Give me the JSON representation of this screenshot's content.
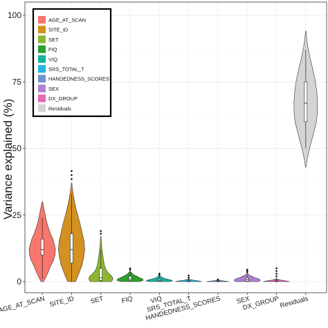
{
  "chart_data": {
    "type": "violin",
    "ylabel": "Variance explained (%)",
    "ylim": [
      0,
      100
    ],
    "yticks": [
      0,
      25,
      50,
      75,
      100
    ],
    "grid": true,
    "legend_position": "top-left",
    "categories": [
      "AGE_AT_SCAN",
      "SITE_ID",
      "SET",
      "FIQ",
      "VIQ",
      "SRS_TOTAL_T",
      "HANDEDNESS_SCORES",
      "SEX",
      "DX_GROUP",
      "Residuals"
    ],
    "series": [
      {
        "name": "AGE_AT_SCAN",
        "color": "#f8766d",
        "min": 0,
        "q1": 10,
        "median": 12,
        "q3": 16,
        "max": 30,
        "whisker_low": 1,
        "whisker_high": 24,
        "density": [
          [
            0,
            0.1
          ],
          [
            2,
            0.3
          ],
          [
            4,
            0.48
          ],
          [
            6,
            0.65
          ],
          [
            8,
            0.85
          ],
          [
            10,
            0.97
          ],
          [
            12,
            1.0
          ],
          [
            14,
            0.92
          ],
          [
            16,
            0.8
          ],
          [
            18,
            0.62
          ],
          [
            20,
            0.48
          ],
          [
            22,
            0.36
          ],
          [
            24,
            0.26
          ],
          [
            26,
            0.18
          ],
          [
            28,
            0.1
          ],
          [
            30,
            0.02
          ]
        ],
        "width_scale": 1.0,
        "outliers": []
      },
      {
        "name": "SITE_ID",
        "color": "#d3921f",
        "min": 0,
        "q1": 7,
        "median": 12,
        "q3": 18,
        "max": 37,
        "whisker_low": 0,
        "whisker_high": 33,
        "density": [
          [
            0,
            0.3
          ],
          [
            3,
            0.55
          ],
          [
            6,
            0.78
          ],
          [
            9,
            0.92
          ],
          [
            12,
            1.0
          ],
          [
            15,
            0.95
          ],
          [
            18,
            0.82
          ],
          [
            21,
            0.68
          ],
          [
            24,
            0.52
          ],
          [
            27,
            0.36
          ],
          [
            30,
            0.22
          ],
          [
            33,
            0.12
          ],
          [
            35,
            0.06
          ],
          [
            37,
            0.02
          ]
        ],
        "width_scale": 1.0,
        "outliers": [
          38.5,
          40,
          41.5
        ]
      },
      {
        "name": "SET",
        "color": "#8db82e",
        "min": 0,
        "q1": 0.5,
        "median": 1.5,
        "q3": 5,
        "max": 17,
        "whisker_low": 0,
        "whisker_high": 12,
        "density": [
          [
            0,
            0.88
          ],
          [
            1,
            1.0
          ],
          [
            2,
            0.92
          ],
          [
            3,
            0.68
          ],
          [
            4,
            0.48
          ],
          [
            5,
            0.38
          ],
          [
            6,
            0.3
          ],
          [
            8,
            0.22
          ],
          [
            10,
            0.16
          ],
          [
            12,
            0.1
          ],
          [
            14,
            0.06
          ],
          [
            16,
            0.03
          ],
          [
            17,
            0.01
          ]
        ],
        "width_scale": 0.92,
        "outliers": [
          18,
          19
        ]
      },
      {
        "name": "FIQ",
        "color": "#2ca02c",
        "min": 0,
        "q1": 0.4,
        "median": 1,
        "q3": 2,
        "max": 4,
        "whisker_low": 0,
        "whisker_high": 3.5,
        "density": [
          [
            0,
            0.7
          ],
          [
            0.5,
            1.0
          ],
          [
            1,
            0.95
          ],
          [
            1.5,
            0.72
          ],
          [
            2,
            0.52
          ],
          [
            2.5,
            0.32
          ],
          [
            3,
            0.18
          ],
          [
            3.5,
            0.08
          ],
          [
            4,
            0.02
          ]
        ],
        "width_scale": 1.0,
        "outliers": [
          4.5,
          5
        ]
      },
      {
        "name": "VIQ",
        "color": "#13b3a2",
        "min": 0,
        "q1": 0.2,
        "median": 0.5,
        "q3": 1,
        "max": 2.2,
        "whisker_low": 0,
        "whisker_high": 2,
        "density": [
          [
            0,
            0.75
          ],
          [
            0.3,
            1.0
          ],
          [
            0.6,
            0.88
          ],
          [
            1,
            0.55
          ],
          [
            1.5,
            0.25
          ],
          [
            2,
            0.08
          ],
          [
            2.2,
            0.02
          ]
        ],
        "width_scale": 1.0,
        "outliers": [
          2.5,
          3
        ]
      },
      {
        "name": "SRS_TOTAL_T",
        "color": "#23b4e2",
        "min": 0,
        "q1": 0.05,
        "median": 0.2,
        "q3": 0.5,
        "max": 1,
        "whisker_low": 0,
        "whisker_high": 1,
        "density": [
          [
            0,
            1.0
          ],
          [
            0.2,
            0.85
          ],
          [
            0.5,
            0.4
          ],
          [
            0.8,
            0.12
          ],
          [
            1,
            0.02
          ]
        ],
        "width_scale": 1.0,
        "outliers": [
          1.5,
          2.3
        ]
      },
      {
        "name": "HANDEDNESS_SCORES",
        "color": "#6f93cf",
        "min": 0,
        "q1": 0.05,
        "median": 0.1,
        "q3": 0.3,
        "max": 0.6,
        "whisker_low": 0,
        "whisker_high": 0.6,
        "density": [
          [
            0,
            1.0
          ],
          [
            0.2,
            0.6
          ],
          [
            0.4,
            0.25
          ],
          [
            0.6,
            0.03
          ]
        ],
        "width_scale": 0.85,
        "outliers": [
          0.8
        ]
      },
      {
        "name": "SEX",
        "color": "#b07fcf",
        "min": 0,
        "q1": 0.2,
        "median": 0.8,
        "q3": 1.5,
        "max": 3,
        "whisker_low": 0,
        "whisker_high": 2.5,
        "density": [
          [
            0,
            0.85
          ],
          [
            0.5,
            1.0
          ],
          [
            1,
            0.9
          ],
          [
            1.5,
            0.6
          ],
          [
            2,
            0.35
          ],
          [
            2.5,
            0.14
          ],
          [
            3,
            0.03
          ]
        ],
        "width_scale": 1.0,
        "outliers": [
          3.5,
          4,
          4.5
        ]
      },
      {
        "name": "DX_GROUP",
        "color": "#e966b8",
        "min": 0,
        "q1": 0.05,
        "median": 0.2,
        "q3": 0.5,
        "max": 1,
        "whisker_low": 0,
        "whisker_high": 1.5,
        "density": [
          [
            0,
            1.0
          ],
          [
            0.3,
            0.7
          ],
          [
            0.6,
            0.3
          ],
          [
            1,
            0.04
          ]
        ],
        "width_scale": 1.0,
        "outliers": [
          2,
          3,
          4,
          5
        ]
      },
      {
        "name": "Residuals",
        "color": "#d4d4d4",
        "min": 43,
        "q1": 60,
        "median": 67,
        "q3": 75,
        "max": 94,
        "whisker_low": 50,
        "whisker_high": 87,
        "density": [
          [
            43,
            0.02
          ],
          [
            46,
            0.12
          ],
          [
            50,
            0.32
          ],
          [
            55,
            0.62
          ],
          [
            60,
            0.9
          ],
          [
            63,
            0.98
          ],
          [
            67,
            1.0
          ],
          [
            72,
            0.92
          ],
          [
            76,
            0.78
          ],
          [
            80,
            0.58
          ],
          [
            84,
            0.36
          ],
          [
            88,
            0.18
          ],
          [
            91,
            0.08
          ],
          [
            94,
            0.02
          ]
        ],
        "width_scale": 0.9,
        "outliers": []
      }
    ],
    "legend": [
      {
        "label": "AGE_AT_SCAN",
        "color": "#f8766d"
      },
      {
        "label": "SITE_ID",
        "color": "#d3921f"
      },
      {
        "label": "SET",
        "color": "#8db82e"
      },
      {
        "label": "FIQ",
        "color": "#2ca02c"
      },
      {
        "label": "VIQ",
        "color": "#13b3a2"
      },
      {
        "label": "SRS_TOTAL_T",
        "color": "#23b4e2"
      },
      {
        "label": "HANDEDNESS_SCORES",
        "color": "#6f93cf"
      },
      {
        "label": "SEX",
        "color": "#b07fcf"
      },
      {
        "label": "DX_GROUP",
        "color": "#e966b8"
      },
      {
        "label": "Residuals",
        "color": "#d4d4d4"
      }
    ]
  }
}
